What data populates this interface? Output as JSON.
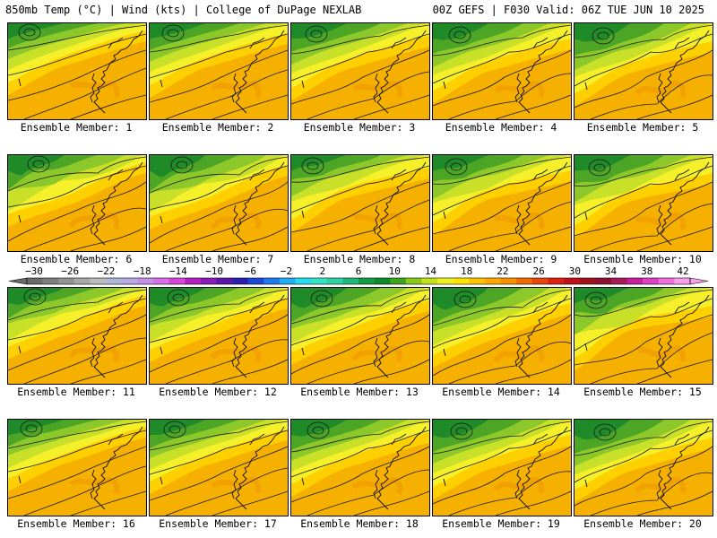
{
  "header": {
    "left": "850mb Temp (°C) | Wind (kts) | College of DuPage NEXLAB",
    "right": "00Z GEFS | F030 Valid: 06Z TUE JUN 10 2025"
  },
  "members": [
    "Ensemble Member: 1",
    "Ensemble Member: 2",
    "Ensemble Member: 3",
    "Ensemble Member: 4",
    "Ensemble Member: 5",
    "Ensemble Member: 6",
    "Ensemble Member: 7",
    "Ensemble Member: 8",
    "Ensemble Member: 9",
    "Ensemble Member: 10",
    "Ensemble Member: 11",
    "Ensemble Member: 12",
    "Ensemble Member: 13",
    "Ensemble Member: 14",
    "Ensemble Member: 15",
    "Ensemble Member: 16",
    "Ensemble Member: 17",
    "Ensemble Member: 18",
    "Ensemble Member: 19",
    "Ensemble Member: 20"
  ],
  "colorbar": {
    "tick_labels": [
      "−30",
      "−26",
      "−22",
      "−18",
      "−14",
      "−10",
      "−6",
      "−2",
      "2",
      "6",
      "10",
      "14",
      "18",
      "22",
      "26",
      "30",
      "34",
      "38",
      "42"
    ],
    "colors": [
      "#6a6a6a",
      "#7e7e7e",
      "#939393",
      "#a8a8a8",
      "#bcbcbc",
      "#aeb8d6",
      "#b7a9e2",
      "#c790e8",
      "#d76fe8",
      "#d945d9",
      "#b51fc0",
      "#8a1bb5",
      "#5a16a8",
      "#2b1fb0",
      "#1f46d8",
      "#1f78f0",
      "#22aff2",
      "#27dcf0",
      "#35e3c6",
      "#2fd2a0",
      "#1fb87a",
      "#129c48",
      "#0f8a28",
      "#3fa21c",
      "#8ac81c",
      "#c4e018",
      "#eef020",
      "#ffe400",
      "#ffc400",
      "#ffa800",
      "#f89000",
      "#f06a00",
      "#e84410",
      "#dc1f10",
      "#c0101a",
      "#a0101a",
      "#8a1230",
      "#a81a58",
      "#c81e9a",
      "#e040c8",
      "#f070e0",
      "#f8a0ec"
    ]
  },
  "map_colors": {
    "dark_green": "#1f8a28",
    "green": "#4da526",
    "light_green": "#8cc82a",
    "yellow_green": "#c8e028",
    "yellow": "#f6f02a",
    "gold": "#ffd000",
    "orange": "#f5b000",
    "dark_orange": "#ee9a00"
  }
}
